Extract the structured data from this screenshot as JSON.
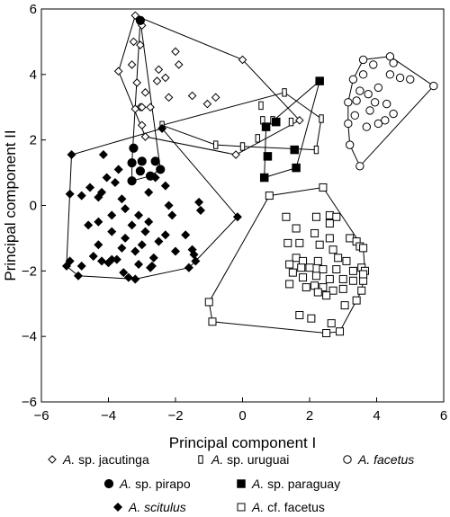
{
  "chart_data": {
    "type": "scatter",
    "xlabel": "Principal component I",
    "ylabel": "Principal component II",
    "xlim": [
      -6,
      6
    ],
    "ylim": [
      -6,
      6
    ],
    "xticks": [
      "−6",
      "−4",
      "−2",
      "0",
      "2",
      "4",
      "6"
    ],
    "yticks": [
      "−6",
      "−4",
      "−2",
      "0",
      "2",
      "4",
      "6"
    ],
    "grid": false,
    "legend_position": "bottom",
    "hulls": true,
    "series": [
      {
        "name": "A. sp. jacutinga",
        "name_prefix": "A.",
        "name_rest": " sp. jacutinga",
        "italic_rest": false,
        "marker": "diamond",
        "fill": "none",
        "points": [
          [
            -3.2,
            5.8
          ],
          [
            -3.0,
            5.5
          ],
          [
            -3.05,
            4.9
          ],
          [
            -3.25,
            5.0
          ],
          [
            -2.0,
            4.7
          ],
          [
            -1.9,
            4.3
          ],
          [
            -3.3,
            4.3
          ],
          [
            -2.5,
            4.15
          ],
          [
            -3.7,
            4.1
          ],
          [
            -2.3,
            3.9
          ],
          [
            -2.55,
            3.8
          ],
          [
            -3.15,
            3.75
          ],
          [
            -2.9,
            3.45
          ],
          [
            -1.5,
            3.35
          ],
          [
            -2.2,
            3.3
          ],
          [
            -3.05,
            3.0
          ],
          [
            -2.75,
            3.0
          ],
          [
            -0.8,
            3.3
          ],
          [
            -1.05,
            3.1
          ],
          [
            -3.2,
            2.95
          ],
          [
            -3.0,
            2.45
          ],
          [
            -2.9,
            2.1
          ],
          [
            -0.2,
            1.55
          ],
          [
            1.7,
            2.6
          ],
          [
            0.0,
            4.45
          ],
          [
            -3.0,
            3.0
          ]
        ]
      },
      {
        "name": "A. sp. uruguai",
        "name_prefix": "A.",
        "name_rest": " sp. uruguai",
        "italic_rest": false,
        "marker": "thin-rect",
        "fill": "none",
        "points": [
          [
            1.25,
            3.45
          ],
          [
            0.55,
            3.05
          ],
          [
            0.6,
            2.6
          ],
          [
            2.35,
            2.65
          ],
          [
            1.45,
            2.55
          ],
          [
            -2.4,
            2.45
          ],
          [
            -0.8,
            1.85
          ],
          [
            -0.0,
            1.8
          ],
          [
            2.2,
            1.7
          ],
          [
            0.45,
            2.05
          ],
          [
            0.9,
            2.6
          ]
        ]
      },
      {
        "name": "A. facetus",
        "name_prefix": "A.",
        "name_rest": " facetus",
        "italic_rest": true,
        "marker": "circle",
        "fill": "none",
        "points": [
          [
            4.4,
            4.55
          ],
          [
            4.5,
            4.35
          ],
          [
            3.6,
            4.45
          ],
          [
            3.9,
            4.3
          ],
          [
            4.4,
            4.0
          ],
          [
            3.6,
            4.0
          ],
          [
            4.7,
            3.9
          ],
          [
            5.0,
            3.85
          ],
          [
            5.7,
            3.65
          ],
          [
            3.3,
            3.85
          ],
          [
            3.75,
            3.4
          ],
          [
            3.5,
            3.5
          ],
          [
            4.05,
            3.6
          ],
          [
            3.15,
            3.15
          ],
          [
            3.4,
            3.2
          ],
          [
            3.95,
            3.15
          ],
          [
            4.3,
            3.1
          ],
          [
            3.8,
            2.9
          ],
          [
            4.5,
            2.8
          ],
          [
            4.25,
            2.6
          ],
          [
            3.15,
            2.5
          ],
          [
            3.7,
            2.4
          ],
          [
            3.35,
            2.75
          ],
          [
            4.05,
            2.5
          ],
          [
            3.2,
            1.85
          ],
          [
            3.5,
            1.2
          ]
        ]
      },
      {
        "name": "A. sp. pirapo",
        "name_prefix": "A.",
        "name_rest": " sp. pirapo",
        "italic_rest": false,
        "marker": "circle",
        "fill": "black",
        "points": [
          [
            -3.05,
            5.65
          ],
          [
            -3.25,
            1.75
          ],
          [
            -3.3,
            1.3
          ],
          [
            -3.0,
            1.35
          ],
          [
            -2.6,
            1.35
          ],
          [
            -2.45,
            1.1
          ],
          [
            -3.05,
            1.05
          ],
          [
            -2.75,
            0.9
          ],
          [
            -3.3,
            0.75
          ]
        ]
      },
      {
        "name": "A. sp. paraguay",
        "name_prefix": "A.",
        "name_rest": " sp. paraguay",
        "italic_rest": false,
        "marker": "square",
        "fill": "black",
        "points": [
          [
            2.3,
            3.8
          ],
          [
            1.0,
            2.55
          ],
          [
            0.7,
            2.4
          ],
          [
            1.55,
            1.7
          ],
          [
            0.75,
            1.5
          ],
          [
            1.6,
            1.15
          ],
          [
            0.65,
            0.85
          ]
        ]
      },
      {
        "name": "A. scitulus",
        "name_prefix": "A.",
        "name_rest": " scitulus",
        "italic_rest": true,
        "marker": "diamond",
        "fill": "black",
        "points": [
          [
            -2.4,
            2.35
          ],
          [
            -5.1,
            1.55
          ],
          [
            -4.15,
            1.55
          ],
          [
            -3.7,
            1.1
          ],
          [
            -4.05,
            0.85
          ],
          [
            -3.8,
            0.7
          ],
          [
            -4.2,
            0.4
          ],
          [
            -4.3,
            0.25
          ],
          [
            -3.6,
            0.2
          ],
          [
            -4.55,
            0.55
          ],
          [
            -4.8,
            0.3
          ],
          [
            -5.15,
            0.35
          ],
          [
            -2.6,
            0.85
          ],
          [
            -2.8,
            0.4
          ],
          [
            -2.3,
            0.6
          ],
          [
            -2.2,
            0.0
          ],
          [
            -1.3,
            0.1
          ],
          [
            -1.25,
            -0.15
          ],
          [
            -3.5,
            -0.1
          ],
          [
            -3.9,
            -0.3
          ],
          [
            -4.3,
            -0.5
          ],
          [
            -4.6,
            -0.6
          ],
          [
            -3.1,
            -0.3
          ],
          [
            -3.3,
            -0.6
          ],
          [
            -2.8,
            -0.5
          ],
          [
            -2.1,
            -0.3
          ],
          [
            -2.9,
            -0.8
          ],
          [
            -3.5,
            -1.0
          ],
          [
            -3.9,
            -0.8
          ],
          [
            -2.5,
            -1.1
          ],
          [
            -3.0,
            -1.2
          ],
          [
            -2.3,
            -0.9
          ],
          [
            -1.7,
            -0.9
          ],
          [
            -4.3,
            -1.2
          ],
          [
            -3.6,
            -1.3
          ],
          [
            -3.2,
            -1.4
          ],
          [
            -2.0,
            -1.4
          ],
          [
            -1.5,
            -1.35
          ],
          [
            -2.65,
            -1.6
          ],
          [
            -3.9,
            -1.65
          ],
          [
            -4.45,
            -1.55
          ],
          [
            -4.2,
            -1.7
          ],
          [
            -3.75,
            -1.65
          ],
          [
            -3.1,
            -1.8
          ],
          [
            -2.7,
            -1.85
          ],
          [
            -1.45,
            -1.5
          ],
          [
            -1.4,
            -1.7
          ],
          [
            -1.6,
            -1.9
          ],
          [
            -5.15,
            -1.7
          ],
          [
            -5.25,
            -1.85
          ],
          [
            -4.9,
            -2.15
          ],
          [
            -3.55,
            -2.05
          ],
          [
            -3.4,
            -2.2
          ],
          [
            -3.2,
            -2.25
          ],
          [
            -2.75,
            -1.9
          ],
          [
            -0.15,
            -0.35
          ],
          [
            -4.8,
            -1.85
          ],
          [
            -4.0,
            -1.75
          ]
        ]
      },
      {
        "name": "A. cf. facetus",
        "name_prefix": "A.",
        "name_rest": " cf. facetus",
        "italic_rest": false,
        "marker": "square",
        "fill": "none",
        "points": [
          [
            0.8,
            0.3
          ],
          [
            2.4,
            0.55
          ],
          [
            2.2,
            -0.35
          ],
          [
            2.6,
            -0.3
          ],
          [
            1.3,
            -0.35
          ],
          [
            2.8,
            -0.35
          ],
          [
            2.6,
            -0.55
          ],
          [
            2.15,
            -0.85
          ],
          [
            1.6,
            -0.7
          ],
          [
            1.7,
            -1.15
          ],
          [
            2.3,
            -1.2
          ],
          [
            2.6,
            -1.0
          ],
          [
            3.2,
            -1.0
          ],
          [
            3.4,
            -1.1
          ],
          [
            3.5,
            -1.25
          ],
          [
            1.35,
            -1.15
          ],
          [
            3.6,
            -1.3
          ],
          [
            2.7,
            -1.35
          ],
          [
            1.6,
            -1.6
          ],
          [
            1.8,
            -1.7
          ],
          [
            2.25,
            -1.7
          ],
          [
            2.85,
            -1.6
          ],
          [
            3.1,
            -1.7
          ],
          [
            1.4,
            -1.8
          ],
          [
            1.75,
            -1.9
          ],
          [
            2.0,
            -1.9
          ],
          [
            2.4,
            -1.95
          ],
          [
            2.8,
            -1.95
          ],
          [
            3.55,
            -1.9
          ],
          [
            3.65,
            -2.0
          ],
          [
            1.5,
            -2.05
          ],
          [
            1.8,
            -2.2
          ],
          [
            2.2,
            -2.15
          ],
          [
            2.6,
            -2.25
          ],
          [
            3.0,
            -2.25
          ],
          [
            3.3,
            -2.3
          ],
          [
            3.6,
            -2.3
          ],
          [
            1.4,
            -2.4
          ],
          [
            1.9,
            -2.5
          ],
          [
            2.15,
            -2.45
          ],
          [
            2.4,
            -2.5
          ],
          [
            2.7,
            -2.6
          ],
          [
            3.0,
            -2.55
          ],
          [
            3.55,
            -2.6
          ],
          [
            2.25,
            -2.65
          ],
          [
            3.4,
            -2.9
          ],
          [
            2.5,
            -2.75
          ],
          [
            3.05,
            -3.05
          ],
          [
            1.7,
            -3.35
          ],
          [
            2.05,
            -3.45
          ],
          [
            2.65,
            -3.6
          ],
          [
            -1.0,
            -2.95
          ],
          [
            -0.9,
            -3.55
          ],
          [
            2.9,
            -3.85
          ],
          [
            2.5,
            -3.9
          ],
          [
            3.6,
            -2.1
          ],
          [
            3.3,
            -2.0
          ]
        ]
      }
    ]
  }
}
